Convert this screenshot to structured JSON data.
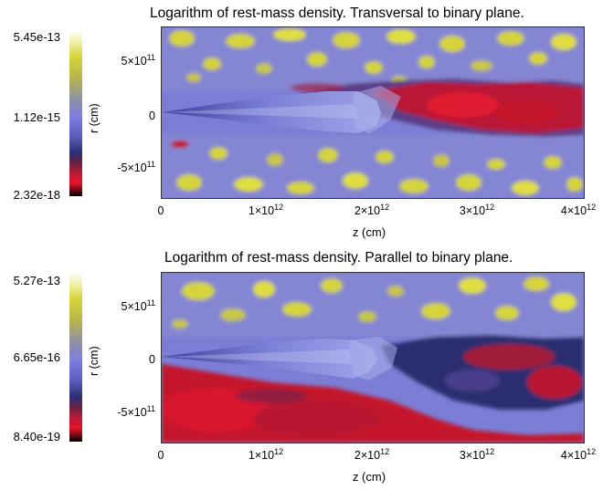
{
  "panels": [
    {
      "title": "Logarithm of rest-mass density. Transversal to binary plane.",
      "colorbar": {
        "top": "5.45e-13",
        "mid": "1.12e-15",
        "bottom": "2.32e-18"
      },
      "ylabel": "r (cm)",
      "yticks": [
        {
          "base": "5×10",
          "exp": "11"
        },
        {
          "base": "0",
          "exp": ""
        },
        {
          "base": "-5×10",
          "exp": "11"
        }
      ],
      "xticks": [
        {
          "base": "0",
          "exp": ""
        },
        {
          "base": "1×10",
          "exp": "12"
        },
        {
          "base": "2×10",
          "exp": "12"
        },
        {
          "base": "3×10",
          "exp": "12"
        },
        {
          "base": "4×10",
          "exp": "12"
        }
      ],
      "xlabel": "z (cm)"
    },
    {
      "title": "Logarithm of rest-mass density. Parallel to binary plane.",
      "colorbar": {
        "top": "5.27e-13",
        "mid": "6.65e-16",
        "bottom": "8.40e-19"
      },
      "ylabel": "r (cm)",
      "yticks": [
        {
          "base": "5×10",
          "exp": "11"
        },
        {
          "base": "0",
          "exp": ""
        },
        {
          "base": "-5×10",
          "exp": "11"
        }
      ],
      "xticks": [
        {
          "base": "0",
          "exp": ""
        },
        {
          "base": "1×10",
          "exp": "12"
        },
        {
          "base": "2×10",
          "exp": "12"
        },
        {
          "base": "3×10",
          "exp": "12"
        },
        {
          "base": "4×10",
          "exp": "12"
        }
      ],
      "xlabel": "z (cm)"
    }
  ],
  "colors": {
    "background": "#7c7ed6",
    "clump": "#d6d43c",
    "jet": "#8a8ee0",
    "hot": "#c4142c",
    "dark": "#2c2f70"
  }
}
